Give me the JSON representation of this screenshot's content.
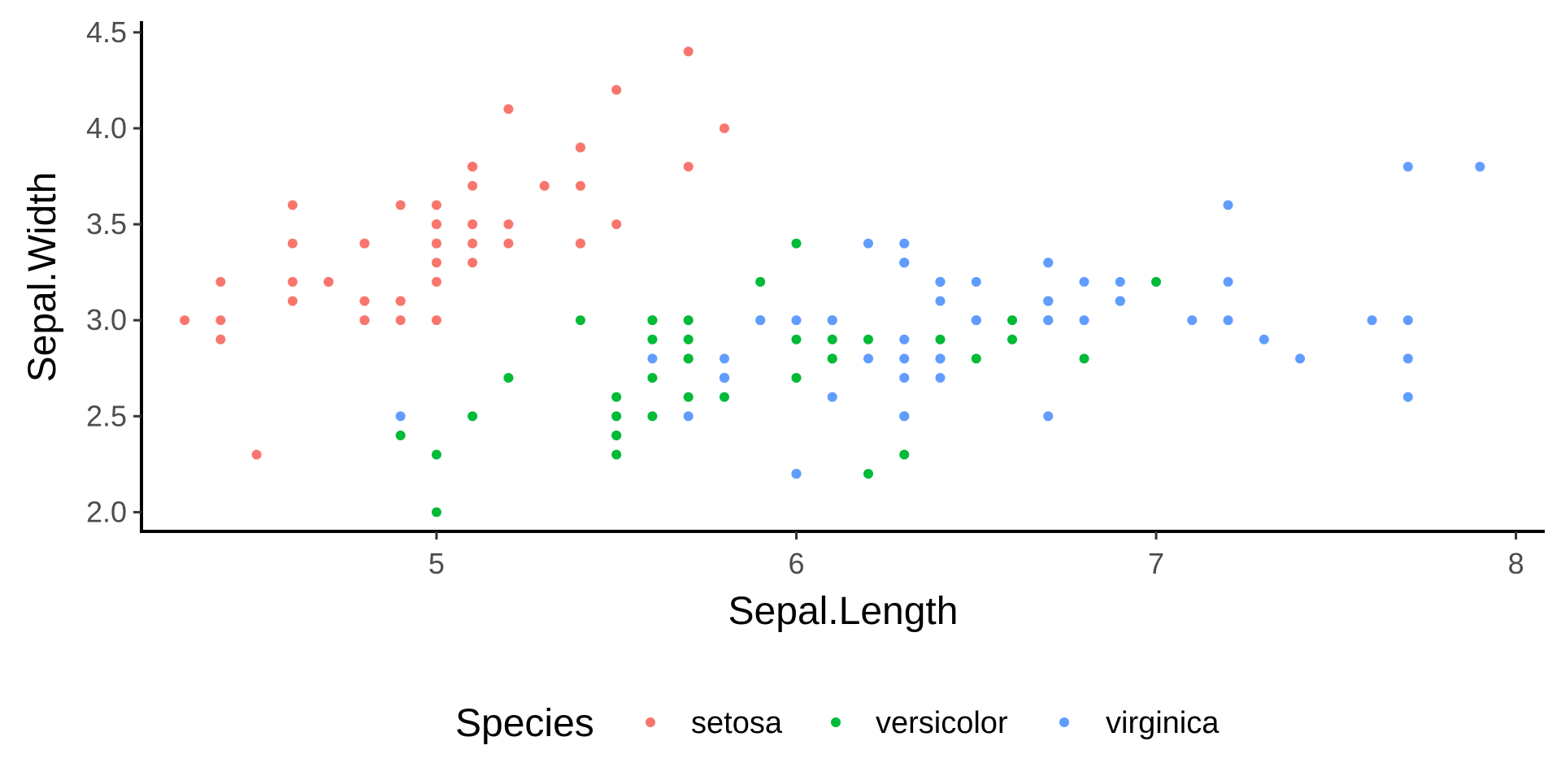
{
  "chart_data": {
    "type": "scatter",
    "xlabel": "Sepal.Length",
    "ylabel": "Sepal.Width",
    "xlim": [
      4.18,
      8.08
    ],
    "ylim": [
      1.9,
      4.55
    ],
    "x_ticks": [
      5,
      6,
      7,
      8
    ],
    "x_tick_labels": [
      "5",
      "6",
      "7",
      "8"
    ],
    "y_ticks": [
      2.0,
      2.5,
      3.0,
      3.5,
      4.0,
      4.5
    ],
    "y_tick_labels": [
      "2.0",
      "2.5",
      "3.0",
      "3.5",
      "4.0",
      "4.5"
    ],
    "grid": false,
    "legend": {
      "title": "Species",
      "placement": "bottom"
    },
    "series": [
      {
        "name": "setosa",
        "color": "#F8766D",
        "points": [
          [
            5.1,
            3.5
          ],
          [
            4.9,
            3.0
          ],
          [
            4.7,
            3.2
          ],
          [
            4.6,
            3.1
          ],
          [
            5.0,
            3.6
          ],
          [
            5.4,
            3.9
          ],
          [
            4.6,
            3.4
          ],
          [
            5.0,
            3.4
          ],
          [
            4.4,
            2.9
          ],
          [
            4.9,
            3.1
          ],
          [
            5.4,
            3.7
          ],
          [
            4.8,
            3.4
          ],
          [
            4.8,
            3.0
          ],
          [
            4.3,
            3.0
          ],
          [
            5.8,
            4.0
          ],
          [
            5.7,
            4.4
          ],
          [
            5.4,
            3.9
          ],
          [
            5.1,
            3.5
          ],
          [
            5.7,
            3.8
          ],
          [
            5.1,
            3.8
          ],
          [
            5.4,
            3.4
          ],
          [
            5.1,
            3.7
          ],
          [
            4.6,
            3.6
          ],
          [
            5.1,
            3.3
          ],
          [
            4.8,
            3.4
          ],
          [
            5.0,
            3.0
          ],
          [
            5.0,
            3.4
          ],
          [
            5.2,
            3.5
          ],
          [
            5.2,
            3.4
          ],
          [
            4.7,
            3.2
          ],
          [
            4.8,
            3.1
          ],
          [
            5.4,
            3.4
          ],
          [
            5.2,
            4.1
          ],
          [
            5.5,
            4.2
          ],
          [
            4.9,
            3.1
          ],
          [
            5.0,
            3.2
          ],
          [
            5.5,
            3.5
          ],
          [
            4.9,
            3.6
          ],
          [
            4.4,
            3.0
          ],
          [
            5.1,
            3.4
          ],
          [
            5.0,
            3.5
          ],
          [
            4.5,
            2.3
          ],
          [
            4.4,
            3.2
          ],
          [
            5.0,
            3.5
          ],
          [
            5.1,
            3.8
          ],
          [
            4.8,
            3.0
          ],
          [
            5.1,
            3.8
          ],
          [
            4.6,
            3.2
          ],
          [
            5.3,
            3.7
          ],
          [
            5.0,
            3.3
          ]
        ]
      },
      {
        "name": "versicolor",
        "color": "#00BA38",
        "points": [
          [
            7.0,
            3.2
          ],
          [
            6.4,
            3.2
          ],
          [
            6.9,
            3.1
          ],
          [
            5.5,
            2.3
          ],
          [
            6.5,
            2.8
          ],
          [
            5.7,
            2.8
          ],
          [
            6.3,
            3.3
          ],
          [
            4.9,
            2.4
          ],
          [
            6.6,
            2.9
          ],
          [
            5.2,
            2.7
          ],
          [
            5.0,
            2.0
          ],
          [
            5.9,
            3.0
          ],
          [
            6.0,
            2.2
          ],
          [
            6.1,
            2.9
          ],
          [
            5.6,
            2.9
          ],
          [
            6.7,
            3.1
          ],
          [
            5.6,
            3.0
          ],
          [
            5.8,
            2.7
          ],
          [
            6.2,
            2.2
          ],
          [
            5.6,
            2.5
          ],
          [
            5.9,
            3.2
          ],
          [
            6.1,
            2.8
          ],
          [
            6.3,
            2.5
          ],
          [
            6.1,
            2.8
          ],
          [
            6.4,
            2.9
          ],
          [
            6.6,
            3.0
          ],
          [
            6.8,
            2.8
          ],
          [
            6.7,
            3.0
          ],
          [
            6.0,
            2.9
          ],
          [
            5.7,
            2.6
          ],
          [
            5.5,
            2.4
          ],
          [
            5.5,
            2.4
          ],
          [
            5.8,
            2.7
          ],
          [
            6.0,
            2.7
          ],
          [
            5.4,
            3.0
          ],
          [
            6.0,
            3.4
          ],
          [
            6.7,
            3.1
          ],
          [
            6.3,
            2.3
          ],
          [
            5.6,
            3.0
          ],
          [
            5.5,
            2.5
          ],
          [
            5.5,
            2.6
          ],
          [
            6.1,
            3.0
          ],
          [
            5.8,
            2.6
          ],
          [
            5.0,
            2.3
          ],
          [
            5.6,
            2.7
          ],
          [
            5.7,
            3.0
          ],
          [
            5.7,
            2.9
          ],
          [
            6.2,
            2.9
          ],
          [
            5.1,
            2.5
          ],
          [
            5.7,
            2.8
          ]
        ]
      },
      {
        "name": "virginica",
        "color": "#619CFF",
        "points": [
          [
            6.3,
            3.3
          ],
          [
            5.8,
            2.7
          ],
          [
            7.1,
            3.0
          ],
          [
            6.3,
            2.9
          ],
          [
            6.5,
            3.0
          ],
          [
            7.6,
            3.0
          ],
          [
            4.9,
            2.5
          ],
          [
            7.3,
            2.9
          ],
          [
            6.7,
            2.5
          ],
          [
            7.2,
            3.6
          ],
          [
            6.5,
            3.2
          ],
          [
            6.4,
            2.7
          ],
          [
            6.8,
            3.0
          ],
          [
            5.7,
            2.5
          ],
          [
            5.8,
            2.8
          ],
          [
            6.4,
            3.2
          ],
          [
            6.5,
            3.0
          ],
          [
            7.7,
            3.8
          ],
          [
            7.7,
            2.6
          ],
          [
            6.0,
            2.2
          ],
          [
            6.9,
            3.2
          ],
          [
            5.6,
            2.8
          ],
          [
            7.7,
            2.8
          ],
          [
            6.3,
            2.7
          ],
          [
            6.7,
            3.3
          ],
          [
            7.2,
            3.2
          ],
          [
            6.2,
            2.8
          ],
          [
            6.1,
            3.0
          ],
          [
            6.4,
            2.8
          ],
          [
            7.2,
            3.0
          ],
          [
            7.4,
            2.8
          ],
          [
            7.9,
            3.8
          ],
          [
            6.4,
            2.8
          ],
          [
            6.3,
            2.8
          ],
          [
            6.1,
            2.6
          ],
          [
            7.7,
            3.0
          ],
          [
            6.3,
            3.4
          ],
          [
            6.4,
            3.1
          ],
          [
            6.0,
            3.0
          ],
          [
            6.9,
            3.1
          ],
          [
            6.7,
            3.1
          ],
          [
            6.9,
            3.1
          ],
          [
            5.8,
            2.7
          ],
          [
            6.8,
            3.2
          ],
          [
            6.7,
            3.3
          ],
          [
            6.7,
            3.0
          ],
          [
            6.3,
            2.5
          ],
          [
            6.5,
            3.0
          ],
          [
            6.2,
            3.4
          ],
          [
            5.9,
            3.0
          ]
        ]
      }
    ]
  }
}
